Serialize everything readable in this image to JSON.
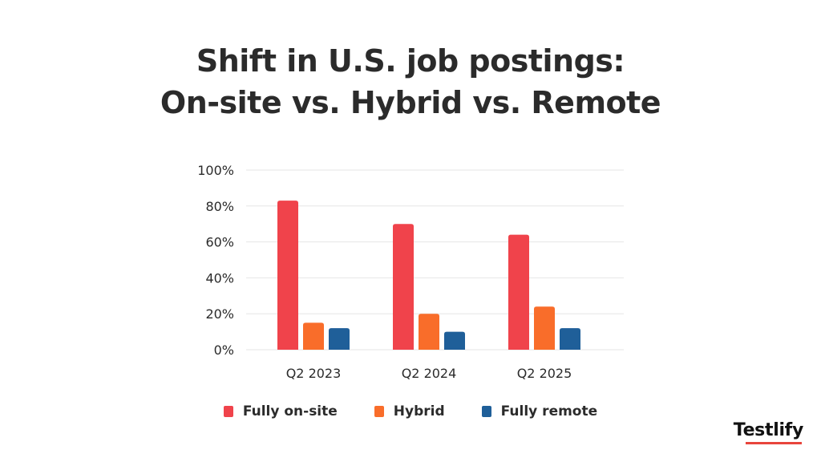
{
  "title": {
    "line1": "Shift in U.S. job postings:",
    "line2": "On-site vs. Hybrid vs. Remote"
  },
  "brand": {
    "name": "Testlify",
    "accent_color": "#e8453c"
  },
  "chart_data": {
    "type": "bar",
    "categories": [
      "Q2 2023",
      "Q2 2024",
      "Q2 2025"
    ],
    "series": [
      {
        "name": "Fully on-site",
        "values": [
          83,
          70,
          64
        ],
        "color": "#f0434b"
      },
      {
        "name": "Hybrid",
        "values": [
          15,
          20,
          24
        ],
        "color": "#f96d2a"
      },
      {
        "name": "Fully remote",
        "values": [
          12,
          10,
          12
        ],
        "color": "#1f5f99"
      }
    ],
    "ylim": [
      0,
      100
    ],
    "yticks": [
      "0%",
      "20%",
      "40%",
      "60%",
      "80%",
      "100%"
    ],
    "ytick_values": [
      0,
      20,
      40,
      60,
      80,
      100
    ],
    "grid": true,
    "legend_position": "bottom"
  }
}
